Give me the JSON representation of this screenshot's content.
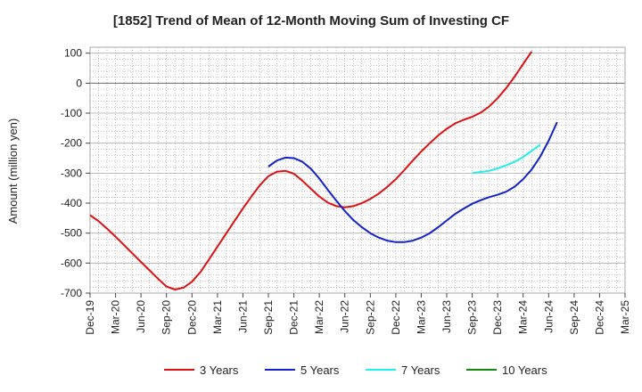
{
  "chart_data": {
    "type": "line",
    "title": "[1852]  Trend of Mean of 12-Month Moving Sum of Investing CF",
    "ylabel": "Amount (million yen)",
    "xlabel": "",
    "ylim": [
      -700,
      120
    ],
    "yticks": [
      100,
      0,
      -100,
      -200,
      -300,
      -400,
      -500,
      -600,
      -700
    ],
    "xticks": [
      "Dec-19",
      "Mar-20",
      "Jun-20",
      "Sep-20",
      "Dec-20",
      "Mar-21",
      "Jun-21",
      "Sep-21",
      "Dec-21",
      "Mar-22",
      "Jun-22",
      "Sep-22",
      "Dec-22",
      "Mar-23",
      "Jun-23",
      "Sep-23",
      "Dec-23",
      "Mar-24",
      "Jun-24",
      "Sep-24",
      "Dec-24",
      "Mar-25"
    ],
    "grid": true,
    "legend_position": "bottom",
    "series": [
      {
        "name": "3 Years",
        "color": "#dd1111",
        "start_month_index": 0,
        "values": [
          -440,
          -460,
          -485,
          -512,
          -540,
          -568,
          -596,
          -624,
          -652,
          -678,
          -688,
          -682,
          -662,
          -630,
          -588,
          -545,
          -502,
          -460,
          -418,
          -378,
          -340,
          -310,
          -295,
          -292,
          -302,
          -325,
          -352,
          -378,
          -398,
          -410,
          -414,
          -410,
          -400,
          -386,
          -368,
          -346,
          -320,
          -290,
          -258,
          -228,
          -200,
          -174,
          -152,
          -134,
          -122,
          -112,
          -98,
          -78,
          -50,
          -16,
          22,
          64,
          105
        ]
      },
      {
        "name": "5 Years",
        "color": "#1122cc",
        "start_month_index": 21,
        "values": [
          -278,
          -258,
          -248,
          -250,
          -262,
          -285,
          -318,
          -356,
          -392,
          -426,
          -456,
          -480,
          -500,
          -515,
          -525,
          -530,
          -530,
          -525,
          -515,
          -500,
          -480,
          -458,
          -436,
          -418,
          -402,
          -390,
          -380,
          -372,
          -362,
          -345,
          -320,
          -288,
          -245,
          -192,
          -130
        ]
      },
      {
        "name": "7 Years",
        "color": "#22eeee",
        "start_month_index": 45,
        "values": [
          -300,
          -296,
          -292,
          -284,
          -274,
          -262,
          -246,
          -226,
          -205
        ]
      },
      {
        "name": "10 Years",
        "color": "#118811",
        "start_month_index": 0,
        "values": []
      }
    ]
  }
}
